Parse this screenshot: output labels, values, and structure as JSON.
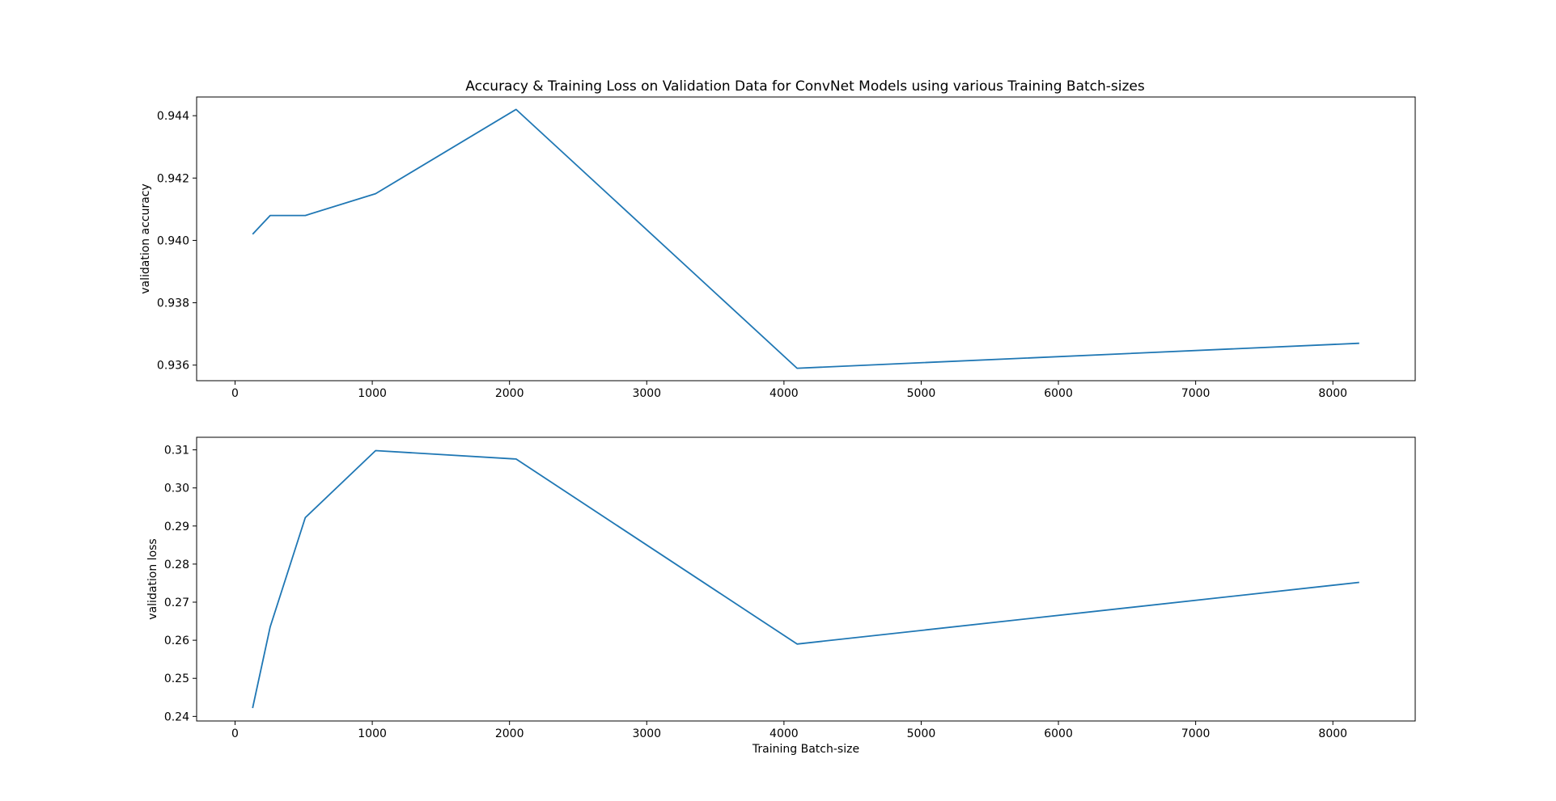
{
  "figure": {
    "title": "Accuracy & Training Loss on Validation Data for ConvNet Models using various Training Batch-sizes",
    "line_color": "#1f77b4"
  },
  "chart_data": [
    {
      "type": "line",
      "name": "validation-accuracy-chart",
      "title": "Accuracy & Training Loss on Validation Data for ConvNet Models using various Training Batch-sizes",
      "xlabel": "",
      "ylabel": "validation accuracy",
      "x": [
        128,
        256,
        512,
        1024,
        2048,
        4096,
        8192
      ],
      "series": [
        {
          "values": [
            0.9402,
            0.9408,
            0.9408,
            0.9415,
            0.9442,
            0.9359,
            0.9367
          ]
        }
      ],
      "xlim": [
        -280,
        8600
      ],
      "ylim": [
        0.9355,
        0.9446
      ],
      "xticks": [
        0,
        1000,
        2000,
        3000,
        4000,
        5000,
        6000,
        7000,
        8000
      ],
      "xtick_labels": [
        "0",
        "1000",
        "2000",
        "3000",
        "4000",
        "5000",
        "6000",
        "7000",
        "8000"
      ],
      "yticks": [
        0.936,
        0.938,
        0.94,
        0.942,
        0.944
      ],
      "ytick_labels": [
        "0.936",
        "0.938",
        "0.940",
        "0.942",
        "0.944"
      ],
      "grid": false,
      "legend": "none"
    },
    {
      "type": "line",
      "name": "validation-loss-chart",
      "title": "",
      "xlabel": "Training Batch-size",
      "ylabel": "validation loss",
      "x": [
        128,
        256,
        512,
        1024,
        2048,
        4096,
        8192
      ],
      "series": [
        {
          "values": [
            0.2422,
            0.2635,
            0.2922,
            0.3098,
            0.3076,
            0.259,
            0.2752
          ]
        }
      ],
      "xlim": [
        -280,
        8600
      ],
      "ylim": [
        0.2388,
        0.3133
      ],
      "xticks": [
        0,
        1000,
        2000,
        3000,
        4000,
        5000,
        6000,
        7000,
        8000
      ],
      "xtick_labels": [
        "0",
        "1000",
        "2000",
        "3000",
        "4000",
        "5000",
        "6000",
        "7000",
        "8000"
      ],
      "yticks": [
        0.24,
        0.25,
        0.26,
        0.27,
        0.28,
        0.29,
        0.3,
        0.31
      ],
      "ytick_labels": [
        "0.24",
        "0.25",
        "0.26",
        "0.27",
        "0.28",
        "0.29",
        "0.30",
        "0.31"
      ],
      "grid": false,
      "legend": "none"
    }
  ]
}
